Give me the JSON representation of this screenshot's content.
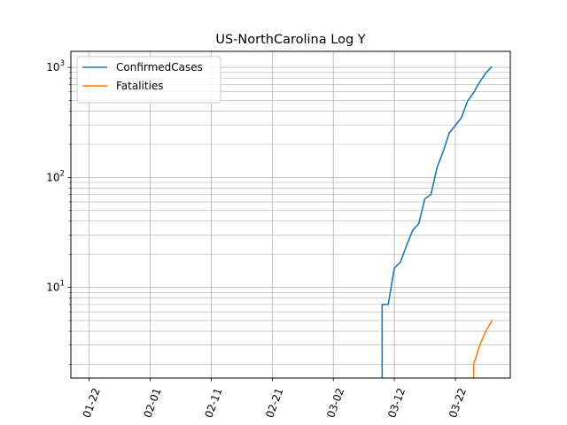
{
  "chart_data": {
    "type": "line",
    "title": "US-NorthCarolina Log Y",
    "xlabel": "",
    "ylabel": "",
    "yscale": "log",
    "grid": true,
    "grid_minor": true,
    "legend_position": "top-left",
    "x_start": "2020-01-22",
    "x_end": "2020-03-28",
    "x_range": [
      "2020-01-19",
      "2020-03-31"
    ],
    "y_range": [
      1.5,
      1400
    ],
    "x_ticks": [
      "01-22",
      "02-01",
      "02-11",
      "02-21",
      "03-02",
      "03-12",
      "03-22"
    ],
    "x_tick_dates": [
      "2020-01-22",
      "2020-02-01",
      "2020-02-11",
      "2020-02-21",
      "2020-03-02",
      "2020-03-12",
      "2020-03-22"
    ],
    "y_ticks": [
      10,
      100,
      1000
    ],
    "y_tick_labels": [
      "10",
      "10",
      "10"
    ],
    "y_tick_exponents": [
      "1",
      "2",
      "3"
    ],
    "series": [
      {
        "name": "ConfirmedCases",
        "color": "#1f77b4",
        "x": [
          "2020-03-10",
          "2020-03-10",
          "2020-03-11",
          "2020-03-12",
          "2020-03-13",
          "2020-03-14",
          "2020-03-15",
          "2020-03-16",
          "2020-03-17",
          "2020-03-18",
          "2020-03-19",
          "2020-03-20",
          "2020-03-21",
          "2020-03-22",
          "2020-03-23",
          "2020-03-24",
          "2020-03-25",
          "2020-03-26",
          "2020-03-27",
          "2020-03-28"
        ],
        "values": [
          0,
          7,
          7,
          15,
          17,
          24,
          33,
          38,
          64,
          70,
          123,
          172,
          253,
          297,
          350,
          495,
          590,
          740,
          890,
          1020
        ]
      },
      {
        "name": "Fatalities",
        "color": "#ff7f0e",
        "x": [
          "2020-03-25",
          "2020-03-25",
          "2020-03-26",
          "2020-03-27",
          "2020-03-28"
        ],
        "values": [
          0,
          2,
          3,
          4,
          5
        ]
      }
    ]
  }
}
